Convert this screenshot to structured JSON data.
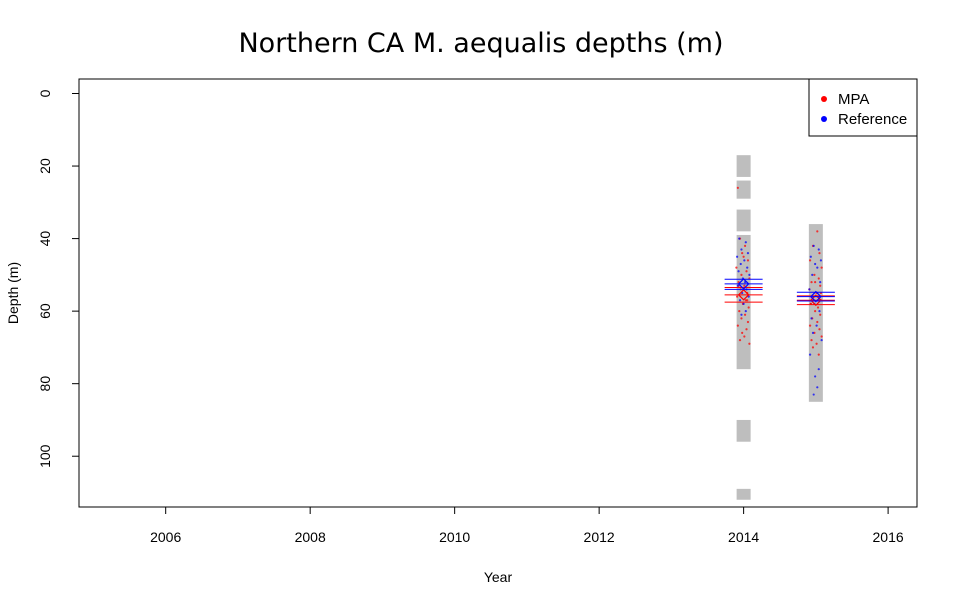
{
  "chart_data": {
    "type": "scatter",
    "title": "Northern CA M. aequalis depths (m)",
    "xlabel": "Year",
    "ylabel": "Depth (m)",
    "xlim": [
      2004.8,
      2016.4
    ],
    "ylim": [
      114,
      -4
    ],
    "y_reversed": true,
    "x_ticks": [
      2006,
      2008,
      2010,
      2012,
      2014,
      2016
    ],
    "y_ticks": [
      0,
      20,
      40,
      60,
      80,
      100
    ],
    "legend": {
      "position": "top-right",
      "entries": [
        {
          "label": "MPA",
          "color": "#ff0000"
        },
        {
          "label": "Reference",
          "color": "#0000ff"
        }
      ]
    },
    "colors": {
      "mpa": "#ff0000",
      "reference": "#0000ff",
      "range": "#bebebe"
    },
    "depth_ranges": [
      {
        "year": 2014,
        "segments": [
          [
            17,
            23
          ],
          [
            24,
            29
          ],
          [
            32,
            38
          ],
          [
            39,
            76
          ],
          [
            90,
            96
          ],
          [
            109,
            112
          ]
        ]
      },
      {
        "year": 2015,
        "segments": [
          [
            36,
            85
          ]
        ]
      }
    ],
    "summary": [
      {
        "group": "MPA",
        "year": 2014,
        "mean": 55.5,
        "lower": 53.5,
        "upper": 57.5
      },
      {
        "group": "Reference",
        "year": 2014,
        "mean": 52.5,
        "lower": 51.2,
        "upper": 54.0
      },
      {
        "group": "MPA",
        "year": 2015,
        "mean": 57.0,
        "lower": 55.8,
        "upper": 58.2
      },
      {
        "group": "Reference",
        "year": 2015,
        "mean": 56.0,
        "lower": 54.8,
        "upper": 57.2
      }
    ],
    "series": [
      {
        "name": "MPA",
        "points": [
          [
            2013.92,
            26
          ],
          [
            2013.95,
            40
          ],
          [
            2014.02,
            42
          ],
          [
            2013.98,
            44
          ],
          [
            2014.06,
            46
          ],
          [
            2013.9,
            48
          ],
          [
            2014.04,
            49
          ],
          [
            2013.97,
            50
          ],
          [
            2014.08,
            51
          ],
          [
            2013.93,
            52
          ],
          [
            2014.01,
            53
          ],
          [
            2013.96,
            54
          ],
          [
            2014.05,
            55
          ],
          [
            2013.91,
            56
          ],
          [
            2014.03,
            57
          ],
          [
            2013.99,
            58
          ],
          [
            2014.07,
            59
          ],
          [
            2013.94,
            60
          ],
          [
            2014.02,
            61
          ],
          [
            2013.97,
            62
          ],
          [
            2014.06,
            63
          ],
          [
            2013.92,
            64
          ],
          [
            2014.04,
            65
          ],
          [
            2013.98,
            66
          ],
          [
            2014.01,
            67
          ],
          [
            2013.95,
            68
          ],
          [
            2014.08,
            69
          ],
          [
            2014.0,
            45
          ],
          [
            2013.93,
            53
          ],
          [
            2014.05,
            57
          ],
          [
            2015.02,
            38
          ],
          [
            2014.96,
            42
          ],
          [
            2015.05,
            44
          ],
          [
            2014.92,
            46
          ],
          [
            2015.08,
            48
          ],
          [
            2014.98,
            50
          ],
          [
            2015.04,
            51
          ],
          [
            2014.94,
            52
          ],
          [
            2015.06,
            53
          ],
          [
            2014.91,
            54
          ],
          [
            2015.01,
            55
          ],
          [
            2014.97,
            56
          ],
          [
            2015.07,
            57
          ],
          [
            2014.93,
            58
          ],
          [
            2015.03,
            59
          ],
          [
            2014.99,
            60
          ],
          [
            2015.06,
            61
          ],
          [
            2014.95,
            62
          ],
          [
            2015.02,
            63
          ],
          [
            2014.92,
            64
          ],
          [
            2015.05,
            65
          ],
          [
            2014.98,
            66
          ],
          [
            2015.08,
            67
          ],
          [
            2014.94,
            68
          ],
          [
            2015.01,
            69
          ],
          [
            2014.96,
            70
          ],
          [
            2015.04,
            72
          ],
          [
            2014.93,
            58
          ],
          [
            2015.07,
            55
          ],
          [
            2014.99,
            52
          ]
        ]
      },
      {
        "name": "Reference",
        "points": [
          [
            2013.94,
            40
          ],
          [
            2014.03,
            41
          ],
          [
            2013.97,
            43
          ],
          [
            2014.06,
            44
          ],
          [
            2013.91,
            45
          ],
          [
            2014.01,
            46
          ],
          [
            2013.96,
            47
          ],
          [
            2014.05,
            48
          ],
          [
            2013.93,
            49
          ],
          [
            2014.08,
            50
          ],
          [
            2013.99,
            51
          ],
          [
            2014.02,
            52
          ],
          [
            2013.92,
            53
          ],
          [
            2014.04,
            54
          ],
          [
            2013.98,
            55
          ],
          [
            2014.07,
            56
          ],
          [
            2013.95,
            57
          ],
          [
            2014.0,
            58
          ],
          [
            2014.03,
            60
          ],
          [
            2013.97,
            61
          ],
          [
            2014.97,
            42
          ],
          [
            2015.04,
            43
          ],
          [
            2014.93,
            45
          ],
          [
            2015.07,
            46
          ],
          [
            2014.99,
            47
          ],
          [
            2015.02,
            48
          ],
          [
            2014.95,
            50
          ],
          [
            2015.06,
            52
          ],
          [
            2014.91,
            54
          ],
          [
            2015.03,
            56
          ],
          [
            2014.98,
            58
          ],
          [
            2015.05,
            60
          ],
          [
            2014.94,
            62
          ],
          [
            2015.01,
            64
          ],
          [
            2014.96,
            66
          ],
          [
            2015.08,
            68
          ],
          [
            2014.92,
            72
          ],
          [
            2015.04,
            76
          ],
          [
            2014.99,
            78
          ],
          [
            2015.02,
            81
          ],
          [
            2014.97,
            83
          ],
          [
            2015.06,
            57
          ]
        ]
      }
    ]
  }
}
